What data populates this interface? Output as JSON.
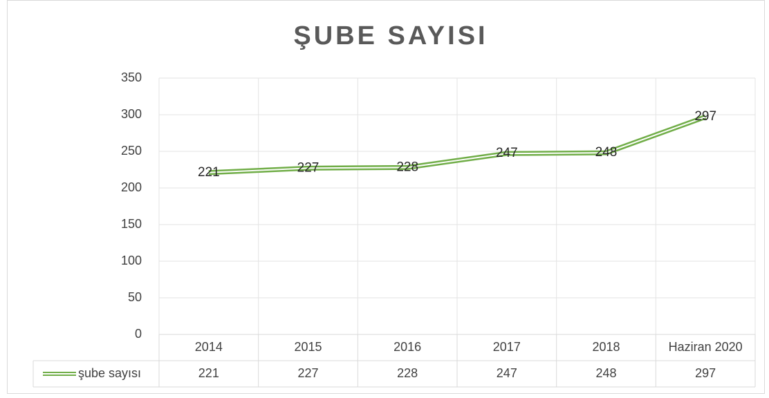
{
  "chart_data": {
    "type": "line",
    "title": "ŞUBE SAYISI",
    "categories": [
      "2014",
      "2015",
      "2016",
      "2017",
      "2018",
      "Haziran 2020"
    ],
    "series": [
      {
        "name": "şube sayısı",
        "color": "#70ad47",
        "values": [
          221,
          227,
          228,
          247,
          248,
          297
        ]
      }
    ],
    "ylim": [
      0,
      350
    ],
    "yticks": [
      0,
      50,
      100,
      150,
      200,
      250,
      300,
      350
    ],
    "grid": true
  }
}
